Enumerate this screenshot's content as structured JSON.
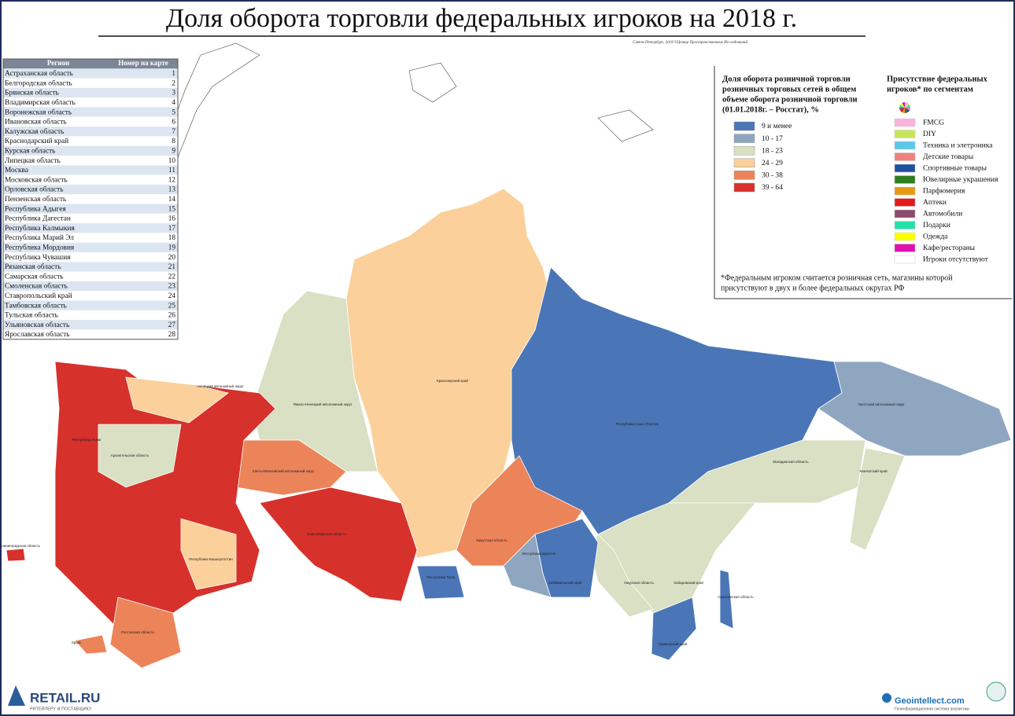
{
  "header": {
    "title": "Доля оборота торговли федеральных игроков на 2018 г.",
    "credit": "Санкт-Петербург, 2018 ©Центр Пространственных Исследований"
  },
  "table": {
    "columns": [
      "Регион",
      "Номер на карте"
    ],
    "rows": [
      [
        "Астраханская область",
        "1"
      ],
      [
        "Белгородская область",
        "2"
      ],
      [
        "Брянская область",
        "3"
      ],
      [
        "Владимирская область",
        "4"
      ],
      [
        "Воронежская область",
        "5"
      ],
      [
        "Ивановская область",
        "6"
      ],
      [
        "Калужская область",
        "7"
      ],
      [
        "Краснодарский край",
        "8"
      ],
      [
        "Курская область",
        "9"
      ],
      [
        "Липецкая область",
        "10"
      ],
      [
        "Москва",
        "11"
      ],
      [
        "Московская область",
        "12"
      ],
      [
        "Орловская область",
        "13"
      ],
      [
        "Пензенская область",
        "14"
      ],
      [
        "Республика Адыгея",
        "15"
      ],
      [
        "Республика Дагестан",
        "16"
      ],
      [
        "Республика Калмыкия",
        "17"
      ],
      [
        "Республика Марий Эл",
        "18"
      ],
      [
        "Республика Мордовия",
        "19"
      ],
      [
        "Республика Чувашия",
        "20"
      ],
      [
        "Рязанская область",
        "21"
      ],
      [
        "Самарская область",
        "22"
      ],
      [
        "Смоленская область",
        "23"
      ],
      [
        "Ставропольский край",
        "24"
      ],
      [
        "Тамбовская область",
        "25"
      ],
      [
        "Тульская область",
        "26"
      ],
      [
        "Ульяновская область",
        "27"
      ],
      [
        "Ярославская область",
        "28"
      ]
    ]
  },
  "share_legend": {
    "title": [
      "Доля оборота розничной торговли",
      "розничных торговых сетей в общем",
      "объеме оборота розничной торговли",
      "(01.01.2018г. – Росстат), %"
    ],
    "classes": [
      {
        "label": "9 и менее",
        "color": "#4a76b8"
      },
      {
        "label": "10 - 17",
        "color": "#8fa6c1"
      },
      {
        "label": "18 - 23",
        "color": "#d9e0c3"
      },
      {
        "label": "24 - 29",
        "color": "#fbd09a"
      },
      {
        "label": "30 - 38",
        "color": "#ec8459"
      },
      {
        "label": "39 - 64",
        "color": "#d7312c"
      }
    ]
  },
  "segment_legend": {
    "title": [
      "Присутствие федеральных",
      "игроков* по сегментам"
    ],
    "items": [
      {
        "label": "FMCG",
        "color": "#f9b4dc"
      },
      {
        "label": "DIY",
        "color": "#c8e45a"
      },
      {
        "label": "Техника и элетроника",
        "color": "#5bc8ea"
      },
      {
        "label": "Детские товары",
        "color": "#f08080"
      },
      {
        "label": "Спортивные товары",
        "color": "#1f4fa0"
      },
      {
        "label": "Ювелирные украшения",
        "color": "#2e7d1e"
      },
      {
        "label": "Парфюмерия",
        "color": "#e59a12"
      },
      {
        "label": "Аптеки",
        "color": "#e31a1c"
      },
      {
        "label": "Автомобили",
        "color": "#8b4a6b"
      },
      {
        "label": "Подарки",
        "color": "#27e0a8"
      },
      {
        "label": "Одежда",
        "color": "#ffff00"
      },
      {
        "label": "Кафе/рестораны",
        "color": "#e010b0"
      },
      {
        "label": "Игроки отсутствуют",
        "color": "#ffffff"
      }
    ]
  },
  "footnote": [
    "*Федеральным игроком считается розничная сеть, магазины которой",
    "присутствуют в двух и более федеральных округах РФ"
  ],
  "regions": [
    {
      "name": "Красноярский край",
      "color": "#fbd09a"
    },
    {
      "name": "Республика Саха (Якутия)",
      "color": "#4a76b8"
    },
    {
      "name": "Чукотский автономный округ",
      "color": "#8fa6c1"
    },
    {
      "name": "Магаданская область",
      "color": "#d9e0c3"
    },
    {
      "name": "Камчатский край",
      "color": "#d9e0c3"
    },
    {
      "name": "Хабаровский край",
      "color": "#d9e0c3"
    },
    {
      "name": "Амурская область",
      "color": "#d9e0c3"
    },
    {
      "name": "Приморский край",
      "color": "#4a76b8"
    },
    {
      "name": "Сахалинская область",
      "color": "#4a76b8"
    },
    {
      "name": "Иркутская область",
      "color": "#ec8459"
    },
    {
      "name": "Забайкальский край",
      "color": "#4a76b8"
    },
    {
      "name": "Республика Бурятия",
      "color": "#8fa6c1"
    },
    {
      "name": "Республика Тыва",
      "color": "#4a76b8"
    },
    {
      "name": "Ямало-Ненецкий автономный округ",
      "color": "#d9e0c3"
    },
    {
      "name": "Ханты-Мансийский автономный округ",
      "color": "#ec8459"
    },
    {
      "name": "Новосибирская область",
      "color": "#d7312c"
    },
    {
      "name": "Республика Коми",
      "color": "#d7312c"
    },
    {
      "name": "Архангельская область",
      "color": "#d9e0c3"
    },
    {
      "name": "Ненецкий автономный округ",
      "color": "#fbd09a"
    },
    {
      "name": "Республика Башкортостан",
      "color": "#fbd09a"
    },
    {
      "name": "Ростовская область",
      "color": "#ec8459"
    },
    {
      "name": "Калининградская область",
      "color": "#d7312c"
    },
    {
      "name": "Крым",
      "color": "#ec8459"
    }
  ],
  "logos": {
    "left": "RETAIL.RU",
    "left_sub": "РИТЕЙЛЕРУ И ПОСТАВЩИКУ",
    "right": "Geointellect.com",
    "right_sub": "Геоинформационная система аналитики"
  }
}
